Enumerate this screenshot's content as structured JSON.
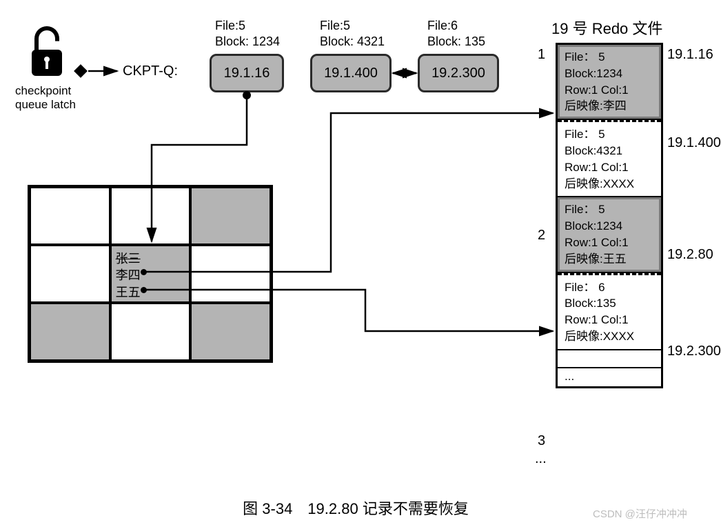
{
  "colors": {
    "bg": "#ffffff",
    "ink": "#000000",
    "shade": "#b4b4b4",
    "shade_border": "#7b7b7b",
    "watermark": "#bdbdbd"
  },
  "fonts": {
    "base_pt": 14,
    "title_pt": 16
  },
  "lock_icon_label": "checkpoint\nqueue latch",
  "ckpt_label": "CKPT-Q:",
  "queue_boxes": [
    {
      "header_line1": "File:5",
      "header_line2": "Block: 1234",
      "value": "19.1.16"
    },
    {
      "header_line1": "File:5",
      "header_line2": "Block: 4321",
      "value": "19.1.400"
    },
    {
      "header_line1": "File:6",
      "header_line2": "Block: 135",
      "value": "19.2.300"
    }
  ],
  "grid": {
    "shaded_cells": [
      2,
      4,
      6,
      8
    ],
    "center_names": [
      "张三",
      "李四",
      "王五"
    ],
    "strike_first": true
  },
  "redo_file": {
    "title": "19 号 Redo 文件",
    "records": [
      {
        "num": 1,
        "highlight": true,
        "lines": [
          "File： 5",
          "Block:1234",
          "Row:1 Col:1",
          "后映像:李四"
        ],
        "rba_right": "19.1.16"
      },
      {
        "num": null,
        "highlight": false,
        "lines": [
          "File： 5",
          "Block:4321",
          "Row:1 Col:1",
          "后映像:XXXX"
        ],
        "rba_right": "19.1.400"
      },
      {
        "num": 2,
        "highlight": true,
        "lines": [
          "File： 5",
          "Block:1234",
          "Row:1 Col:1",
          "后映像:王五"
        ],
        "rba_right": "19.2.80"
      },
      {
        "num": null,
        "highlight": false,
        "lines": [
          "File： 6",
          "Block:135",
          "Row:1 Col:1",
          "后映像:XXXX"
        ],
        "rba_right": "19.2.300"
      }
    ],
    "trailing_slots": [
      {
        "label": "3",
        "text": ""
      },
      {
        "label": "...",
        "text": "..."
      }
    ]
  },
  "caption": "图 3-34　19.2.80 记录不需要恢复",
  "watermark": "CSDN @汪仔冲冲冲",
  "layout": {
    "canvas_wh": [
      1032,
      754
    ],
    "qbox_wh": [
      108,
      56
    ],
    "grid_rect": [
      30,
      258,
      356,
      258
    ],
    "redo_rect": [
      796,
      52,
      156,
      616
    ]
  }
}
